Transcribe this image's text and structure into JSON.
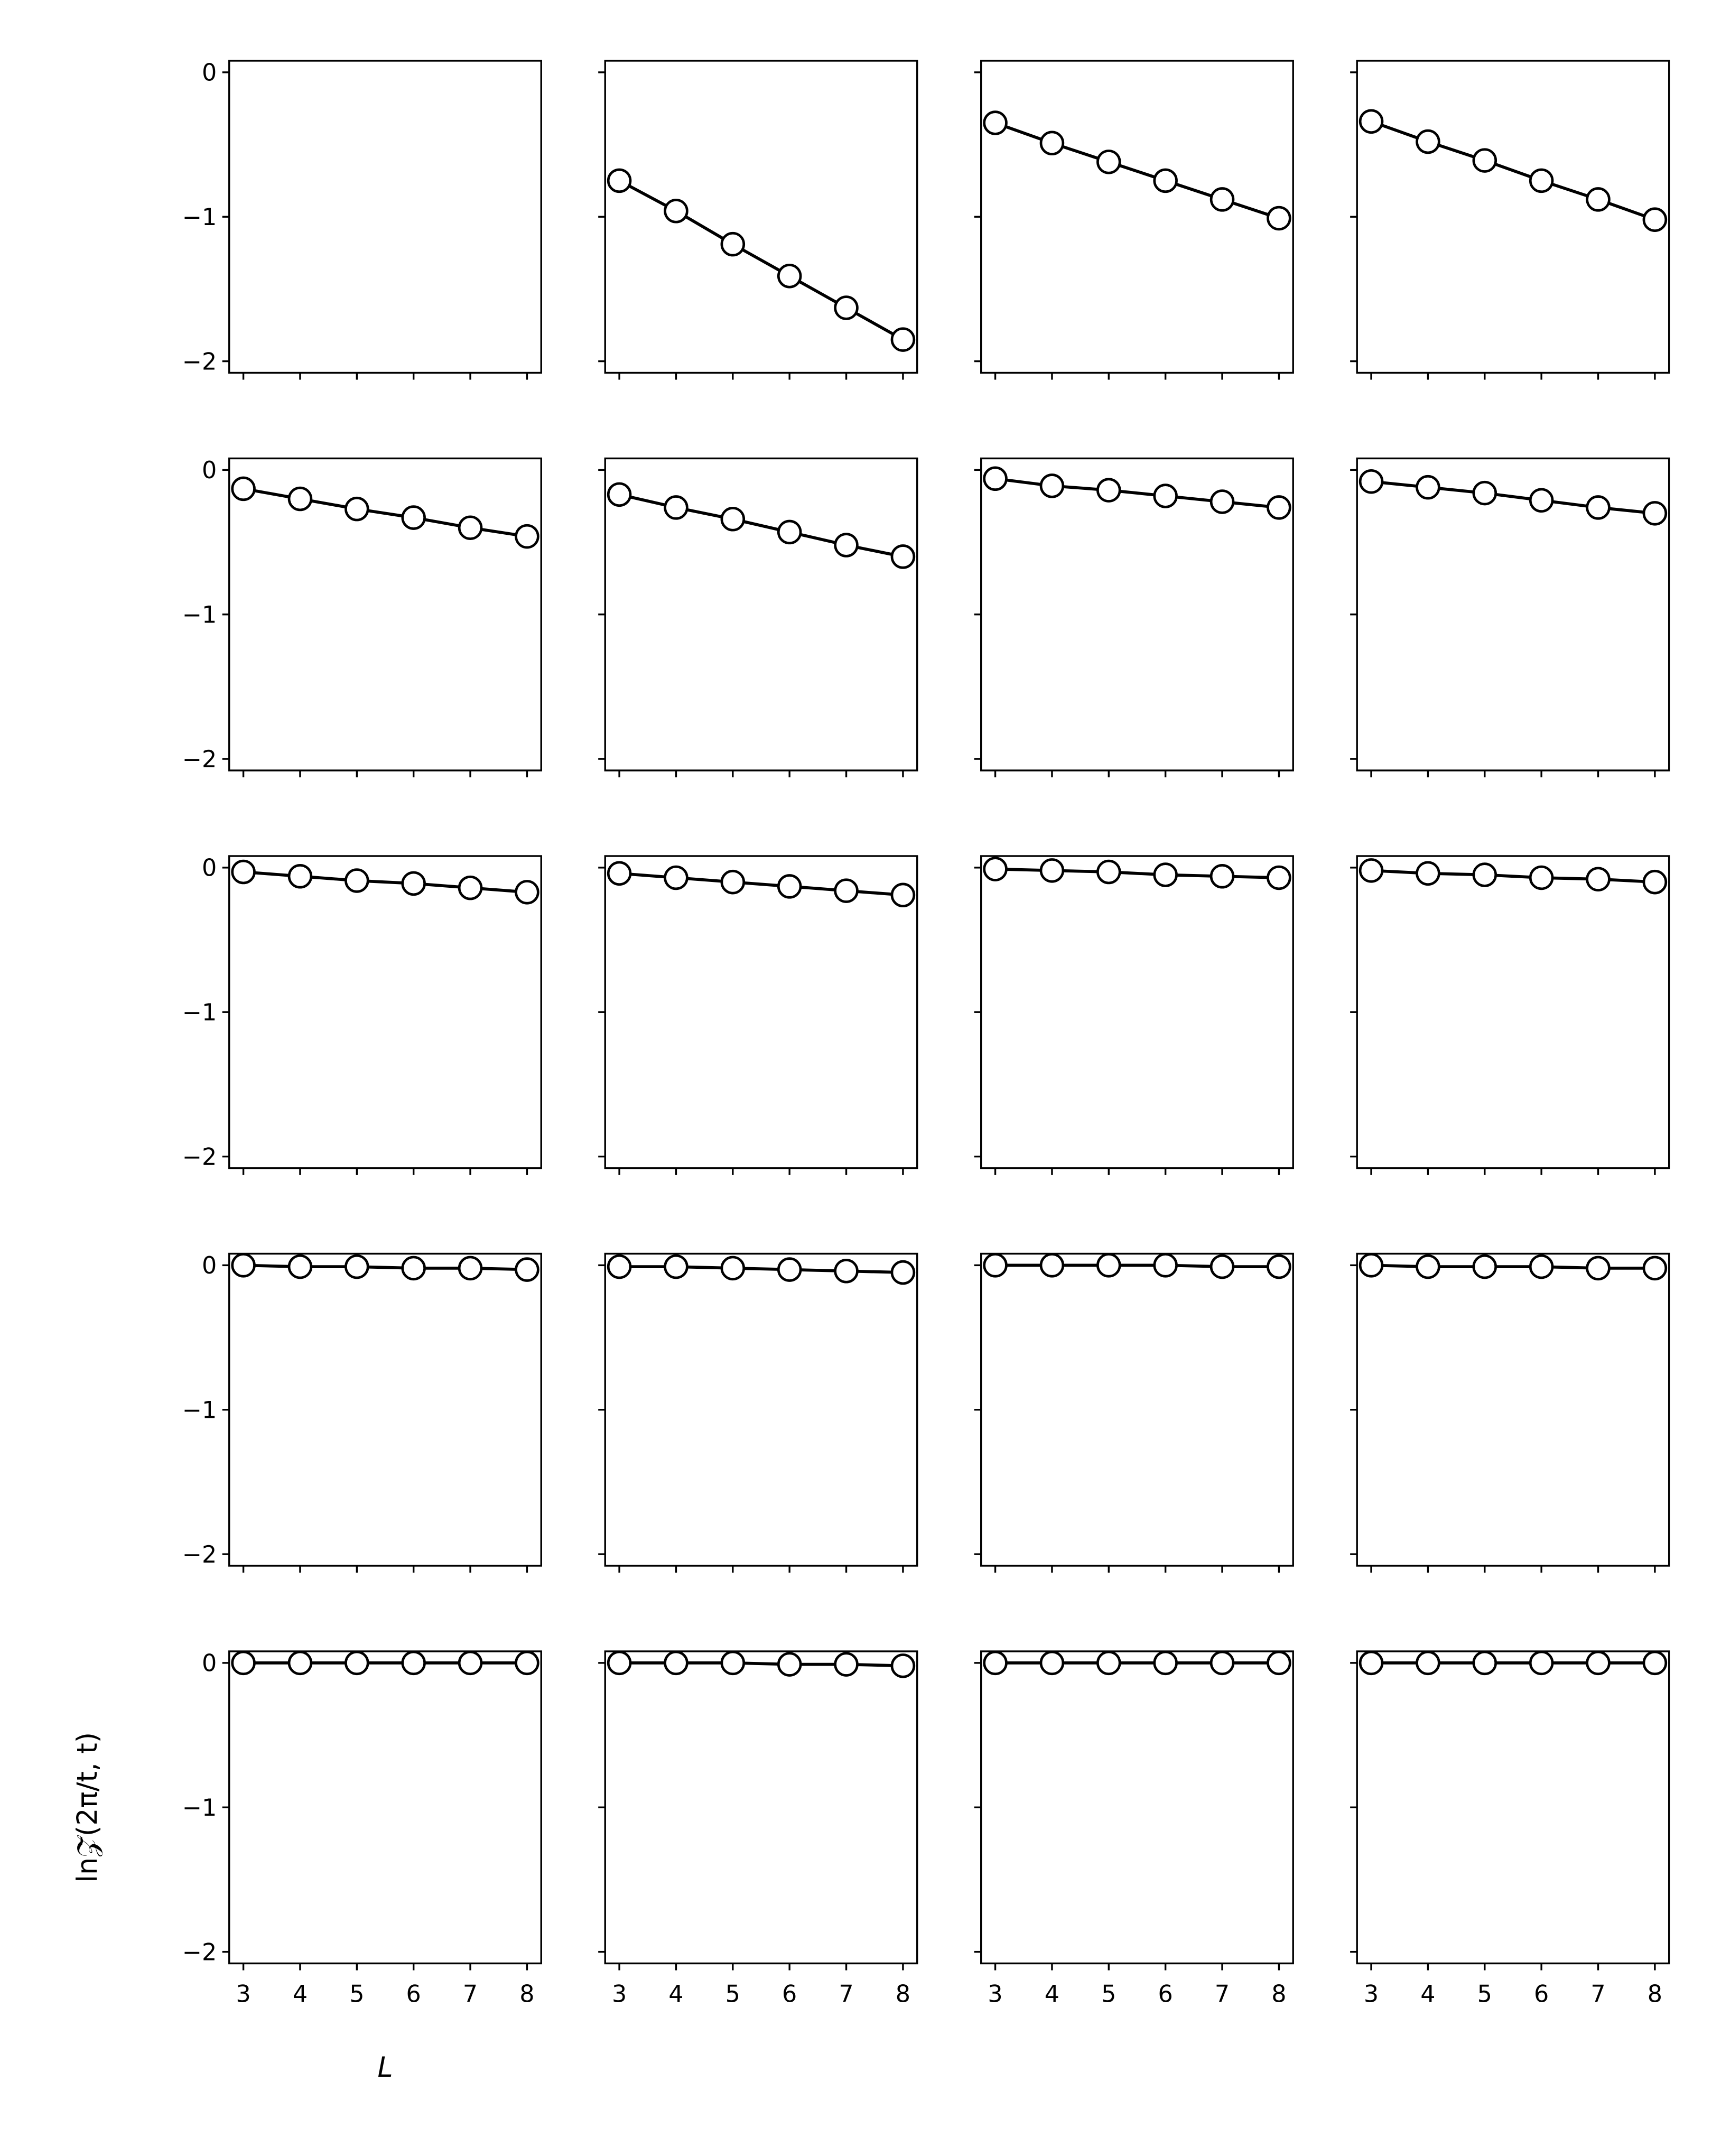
{
  "chart_data": [
    {
      "type": "line",
      "xlim": [
        2.75,
        8.25
      ],
      "ylim": [
        -2.08,
        0.08
      ],
      "xticks": [
        3,
        4,
        5,
        6,
        7,
        8
      ],
      "yticks": [
        {
          "value": 0,
          "label": "0"
        },
        {
          "value": -1,
          "label": "−1"
        },
        {
          "value": -2,
          "label": "−2"
        }
      ]
    },
    {
      "type": "line",
      "x": [
        3,
        4,
        5,
        6,
        7,
        8
      ],
      "series": [
        {
          "color": "#000000",
          "values": [
            -0.75,
            -0.96,
            -1.19,
            -1.41,
            -1.63,
            -1.85
          ]
        }
      ],
      "xlim": [
        2.75,
        8.25
      ],
      "ylim": [
        -2.08,
        0.08
      ],
      "xticks": [
        3,
        4,
        5,
        6,
        7,
        8
      ],
      "yticks": [
        {
          "value": 0,
          "label": "0"
        },
        {
          "value": -1,
          "label": "−1"
        },
        {
          "value": -2,
          "label": "−2"
        }
      ]
    },
    {
      "type": "line",
      "x": [
        3,
        4,
        5,
        6,
        7,
        8
      ],
      "series": [
        {
          "color": "#000000",
          "values": [
            -0.35,
            -0.49,
            -0.62,
            -0.75,
            -0.88,
            -1.01
          ]
        }
      ],
      "xlim": [
        2.75,
        8.25
      ],
      "ylim": [
        -2.08,
        0.08
      ],
      "xticks": [
        3,
        4,
        5,
        6,
        7,
        8
      ],
      "yticks": [
        {
          "value": 0,
          "label": "0"
        },
        {
          "value": -1,
          "label": "−1"
        },
        {
          "value": -2,
          "label": "−2"
        }
      ]
    },
    {
      "type": "line",
      "x": [
        3,
        4,
        5,
        6,
        7,
        8
      ],
      "series": [
        {
          "color": "#000000",
          "values": [
            -0.34,
            -0.48,
            -0.61,
            -0.75,
            -0.88,
            -1.02
          ]
        }
      ],
      "xlim": [
        2.75,
        8.25
      ],
      "ylim": [
        -2.08,
        0.08
      ],
      "xticks": [
        3,
        4,
        5,
        6,
        7,
        8
      ],
      "yticks": [
        {
          "value": 0,
          "label": "0"
        },
        {
          "value": -1,
          "label": "−1"
        },
        {
          "value": -2,
          "label": "−2"
        }
      ]
    },
    {
      "type": "line",
      "x": [
        3,
        4,
        5,
        6,
        7,
        8
      ],
      "series": [
        {
          "color": "#000000",
          "values": [
            -0.13,
            -0.2,
            -0.27,
            -0.33,
            -0.4,
            -0.46
          ]
        }
      ],
      "xlim": [
        2.75,
        8.25
      ],
      "ylim": [
        -2.08,
        0.08
      ],
      "xticks": [
        3,
        4,
        5,
        6,
        7,
        8
      ],
      "yticks": [
        {
          "value": 0,
          "label": "0"
        },
        {
          "value": -1,
          "label": "−1"
        },
        {
          "value": -2,
          "label": "−2"
        }
      ]
    },
    {
      "type": "line",
      "x": [
        3,
        4,
        5,
        6,
        7,
        8
      ],
      "series": [
        {
          "color": "#000000",
          "values": [
            -0.17,
            -0.26,
            -0.34,
            -0.43,
            -0.52,
            -0.6
          ]
        }
      ],
      "xlim": [
        2.75,
        8.25
      ],
      "ylim": [
        -2.08,
        0.08
      ],
      "xticks": [
        3,
        4,
        5,
        6,
        7,
        8
      ],
      "yticks": [
        {
          "value": 0,
          "label": "0"
        },
        {
          "value": -1,
          "label": "−1"
        },
        {
          "value": -2,
          "label": "−2"
        }
      ]
    },
    {
      "type": "line",
      "x": [
        3,
        4,
        5,
        6,
        7,
        8
      ],
      "series": [
        {
          "color": "#000000",
          "values": [
            -0.06,
            -0.11,
            -0.14,
            -0.18,
            -0.22,
            -0.26
          ]
        }
      ],
      "xlim": [
        2.75,
        8.25
      ],
      "ylim": [
        -2.08,
        0.08
      ],
      "xticks": [
        3,
        4,
        5,
        6,
        7,
        8
      ],
      "yticks": [
        {
          "value": 0,
          "label": "0"
        },
        {
          "value": -1,
          "label": "−1"
        },
        {
          "value": -2,
          "label": "−2"
        }
      ]
    },
    {
      "type": "line",
      "x": [
        3,
        4,
        5,
        6,
        7,
        8
      ],
      "series": [
        {
          "color": "#000000",
          "values": [
            -0.08,
            -0.12,
            -0.16,
            -0.21,
            -0.26,
            -0.3
          ]
        }
      ],
      "xlim": [
        2.75,
        8.25
      ],
      "ylim": [
        -2.08,
        0.08
      ],
      "xticks": [
        3,
        4,
        5,
        6,
        7,
        8
      ],
      "yticks": [
        {
          "value": 0,
          "label": "0"
        },
        {
          "value": -1,
          "label": "−1"
        },
        {
          "value": -2,
          "label": "−2"
        }
      ]
    },
    {
      "type": "line",
      "x": [
        3,
        4,
        5,
        6,
        7,
        8
      ],
      "series": [
        {
          "color": "#000000",
          "values": [
            -0.03,
            -0.06,
            -0.09,
            -0.11,
            -0.14,
            -0.17
          ]
        }
      ],
      "xlim": [
        2.75,
        8.25
      ],
      "ylim": [
        -2.08,
        0.08
      ],
      "xticks": [
        3,
        4,
        5,
        6,
        7,
        8
      ],
      "yticks": [
        {
          "value": 0,
          "label": "0"
        },
        {
          "value": -1,
          "label": "−1"
        },
        {
          "value": -2,
          "label": "−2"
        }
      ]
    },
    {
      "type": "line",
      "x": [
        3,
        4,
        5,
        6,
        7,
        8
      ],
      "series": [
        {
          "color": "#000000",
          "values": [
            -0.04,
            -0.07,
            -0.1,
            -0.13,
            -0.16,
            -0.19
          ]
        }
      ],
      "xlim": [
        2.75,
        8.25
      ],
      "ylim": [
        -2.08,
        0.08
      ],
      "xticks": [
        3,
        4,
        5,
        6,
        7,
        8
      ],
      "yticks": [
        {
          "value": 0,
          "label": "0"
        },
        {
          "value": -1,
          "label": "−1"
        },
        {
          "value": -2,
          "label": "−2"
        }
      ]
    },
    {
      "type": "line",
      "x": [
        3,
        4,
        5,
        6,
        7,
        8
      ],
      "series": [
        {
          "color": "#000000",
          "values": [
            -0.01,
            -0.02,
            -0.03,
            -0.05,
            -0.06,
            -0.07
          ]
        }
      ],
      "xlim": [
        2.75,
        8.25
      ],
      "ylim": [
        -2.08,
        0.08
      ],
      "xticks": [
        3,
        4,
        5,
        6,
        7,
        8
      ],
      "yticks": [
        {
          "value": 0,
          "label": "0"
        },
        {
          "value": -1,
          "label": "−1"
        },
        {
          "value": -2,
          "label": "−2"
        }
      ]
    },
    {
      "type": "line",
      "x": [
        3,
        4,
        5,
        6,
        7,
        8
      ],
      "series": [
        {
          "color": "#000000",
          "values": [
            -0.02,
            -0.04,
            -0.05,
            -0.07,
            -0.08,
            -0.1
          ]
        }
      ],
      "xlim": [
        2.75,
        8.25
      ],
      "ylim": [
        -2.08,
        0.08
      ],
      "xticks": [
        3,
        4,
        5,
        6,
        7,
        8
      ],
      "yticks": [
        {
          "value": 0,
          "label": "0"
        },
        {
          "value": -1,
          "label": "−1"
        },
        {
          "value": -2,
          "label": "−2"
        }
      ]
    },
    {
      "type": "line",
      "x": [
        3,
        4,
        5,
        6,
        7,
        8
      ],
      "series": [
        {
          "color": "#000000",
          "values": [
            0,
            -0.01,
            -0.01,
            -0.02,
            -0.02,
            -0.03
          ]
        }
      ],
      "xlim": [
        2.75,
        8.25
      ],
      "ylim": [
        -2.08,
        0.08
      ],
      "xticks": [
        3,
        4,
        5,
        6,
        7,
        8
      ],
      "yticks": [
        {
          "value": 0,
          "label": "0"
        },
        {
          "value": -1,
          "label": "−1"
        },
        {
          "value": -2,
          "label": "−2"
        }
      ]
    },
    {
      "type": "line",
      "x": [
        3,
        4,
        5,
        6,
        7,
        8
      ],
      "series": [
        {
          "color": "#000000",
          "values": [
            -0.01,
            -0.01,
            -0.02,
            -0.03,
            -0.04,
            -0.05
          ]
        }
      ],
      "xlim": [
        2.75,
        8.25
      ],
      "ylim": [
        -2.08,
        0.08
      ],
      "xticks": [
        3,
        4,
        5,
        6,
        7,
        8
      ],
      "yticks": [
        {
          "value": 0,
          "label": "0"
        },
        {
          "value": -1,
          "label": "−1"
        },
        {
          "value": -2,
          "label": "−2"
        }
      ]
    },
    {
      "type": "line",
      "x": [
        3,
        4,
        5,
        6,
        7,
        8
      ],
      "series": [
        {
          "color": "#000000",
          "values": [
            0,
            0,
            0,
            0,
            -0.01,
            -0.01
          ]
        }
      ],
      "xlim": [
        2.75,
        8.25
      ],
      "ylim": [
        -2.08,
        0.08
      ],
      "xticks": [
        3,
        4,
        5,
        6,
        7,
        8
      ],
      "yticks": [
        {
          "value": 0,
          "label": "0"
        },
        {
          "value": -1,
          "label": "−1"
        },
        {
          "value": -2,
          "label": "−2"
        }
      ]
    },
    {
      "type": "line",
      "x": [
        3,
        4,
        5,
        6,
        7,
        8
      ],
      "series": [
        {
          "color": "#000000",
          "values": [
            0,
            -0.01,
            -0.01,
            -0.01,
            -0.02,
            -0.02
          ]
        }
      ],
      "xlim": [
        2.75,
        8.25
      ],
      "ylim": [
        -2.08,
        0.08
      ],
      "xticks": [
        3,
        4,
        5,
        6,
        7,
        8
      ],
      "yticks": [
        {
          "value": 0,
          "label": "0"
        },
        {
          "value": -1,
          "label": "−1"
        },
        {
          "value": -2,
          "label": "−2"
        }
      ]
    },
    {
      "type": "line",
      "x": [
        3,
        4,
        5,
        6,
        7,
        8
      ],
      "series": [
        {
          "color": "#000000",
          "values": [
            0,
            0,
            0,
            0,
            0,
            0
          ]
        }
      ],
      "xlim": [
        2.75,
        8.25
      ],
      "ylim": [
        -2.08,
        0.08
      ],
      "xticks": [
        3,
        4,
        5,
        6,
        7,
        8
      ],
      "yticks": [
        {
          "value": 0,
          "label": "0"
        },
        {
          "value": -1,
          "label": "−1"
        },
        {
          "value": -2,
          "label": "−2"
        }
      ],
      "xlabel": "L",
      "ylabel": "ln𝒵̄(2π/t, t)"
    },
    {
      "type": "line",
      "x": [
        3,
        4,
        5,
        6,
        7,
        8
      ],
      "series": [
        {
          "color": "#000000",
          "values": [
            0,
            0,
            0,
            -0.01,
            -0.01,
            -0.02
          ]
        }
      ],
      "xlim": [
        2.75,
        8.25
      ],
      "ylim": [
        -2.08,
        0.08
      ],
      "xticks": [
        3,
        4,
        5,
        6,
        7,
        8
      ],
      "yticks": [
        {
          "value": 0,
          "label": "0"
        },
        {
          "value": -1,
          "label": "−1"
        },
        {
          "value": -2,
          "label": "−2"
        }
      ]
    },
    {
      "type": "line",
      "x": [
        3,
        4,
        5,
        6,
        7,
        8
      ],
      "series": [
        {
          "color": "#000000",
          "values": [
            0,
            0,
            0,
            0,
            0,
            0
          ]
        }
      ],
      "xlim": [
        2.75,
        8.25
      ],
      "ylim": [
        -2.08,
        0.08
      ],
      "xticks": [
        3,
        4,
        5,
        6,
        7,
        8
      ],
      "yticks": [
        {
          "value": 0,
          "label": "0"
        },
        {
          "value": -1,
          "label": "−1"
        },
        {
          "value": -2,
          "label": "−2"
        }
      ]
    },
    {
      "type": "line",
      "x": [
        3,
        4,
        5,
        6,
        7,
        8
      ],
      "series": [
        {
          "color": "#000000",
          "values": [
            0,
            0,
            0,
            0,
            0,
            0
          ]
        }
      ],
      "xlim": [
        2.75,
        8.25
      ],
      "ylim": [
        -2.08,
        0.08
      ],
      "xticks": [
        3,
        4,
        5,
        6,
        7,
        8
      ],
      "yticks": [
        {
          "value": 0,
          "label": "0"
        },
        {
          "value": -1,
          "label": "−1"
        },
        {
          "value": -2,
          "label": "−2"
        }
      ]
    }
  ]
}
